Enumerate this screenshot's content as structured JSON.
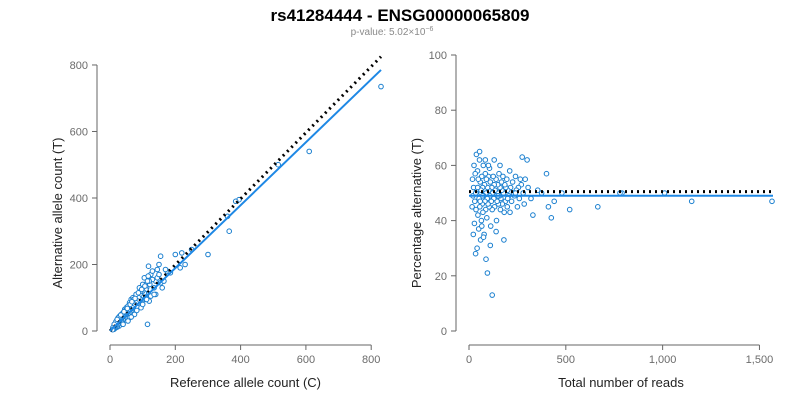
{
  "title": "rs41284444 - ENSG00000065809",
  "subtitle": {
    "label": "p-value: 5.02×10",
    "exponent": "−6"
  },
  "colors": {
    "points": "#1a7fcf",
    "fit_line": "#1e88e5",
    "reference_line": "#000000"
  },
  "chart_data": [
    {
      "type": "scatter",
      "xlabel": "Reference allele count (C)",
      "ylabel": "Alternative allele count (T)",
      "xlim": [
        0,
        830
      ],
      "ylim": [
        0,
        830
      ],
      "xticks": [
        0,
        200,
        400,
        600,
        800
      ],
      "xtick_labels": [
        "0",
        "200",
        "400",
        "600",
        "800"
      ],
      "yticks": [
        0,
        200,
        400,
        600,
        800
      ],
      "ytick_labels": [
        "0",
        "200",
        "400",
        "600",
        "800"
      ],
      "grid": false,
      "lines": [
        {
          "style": "dotted",
          "color": "#000000",
          "x": [
            0,
            830
          ],
          "y": [
            0,
            825
          ]
        },
        {
          "style": "solid",
          "color": "#1e88e5",
          "x": [
            0,
            830
          ],
          "y": [
            0,
            785
          ]
        }
      ],
      "points": [
        [
          830,
          735
        ],
        [
          610,
          540
        ],
        [
          515,
          500
        ],
        [
          395,
          395
        ],
        [
          385,
          390
        ],
        [
          365,
          300
        ],
        [
          360,
          345
        ],
        [
          300,
          230
        ],
        [
          250,
          245
        ],
        [
          230,
          200
        ],
        [
          220,
          235
        ],
        [
          215,
          190
        ],
        [
          200,
          230
        ],
        [
          175,
          180
        ],
        [
          160,
          130
        ],
        [
          155,
          225
        ],
        [
          150,
          200
        ],
        [
          145,
          185
        ],
        [
          140,
          150
        ],
        [
          135,
          130
        ],
        [
          130,
          155
        ],
        [
          125,
          170
        ],
        [
          122,
          140
        ],
        [
          120,
          150
        ],
        [
          118,
          195
        ],
        [
          115,
          110
        ],
        [
          112,
          130
        ],
        [
          110,
          125
        ],
        [
          108,
          140
        ],
        [
          105,
          115
        ],
        [
          102,
          100
        ],
        [
          100,
          120
        ],
        [
          98,
          90
        ],
        [
          96,
          105
        ],
        [
          95,
          85
        ],
        [
          93,
          95
        ],
        [
          92,
          110
        ],
        [
          90,
          80
        ],
        [
          88,
          100
        ],
        [
          86,
          75
        ],
        [
          85,
          90
        ],
        [
          83,
          70
        ],
        [
          80,
          85
        ],
        [
          78,
          60
        ],
        [
          76,
          80
        ],
        [
          75,
          65
        ],
        [
          73,
          75
        ],
        [
          70,
          55
        ],
        [
          68,
          70
        ],
        [
          66,
          60
        ],
        [
          65,
          50
        ],
        [
          63,
          65
        ],
        [
          60,
          55
        ],
        [
          58,
          45
        ],
        [
          57,
          60
        ],
        [
          55,
          50
        ],
        [
          53,
          40
        ],
        [
          52,
          55
        ],
        [
          50,
          45
        ],
        [
          48,
          35
        ],
        [
          47,
          50
        ],
        [
          45,
          40
        ],
        [
          43,
          30
        ],
        [
          42,
          45
        ],
        [
          40,
          35
        ],
        [
          38,
          25
        ],
        [
          37,
          40
        ],
        [
          35,
          30
        ],
        [
          33,
          20
        ],
        [
          32,
          35
        ],
        [
          30,
          25
        ],
        [
          28,
          15
        ],
        [
          27,
          30
        ],
        [
          25,
          20
        ],
        [
          23,
          25
        ],
        [
          22,
          12
        ],
        [
          20,
          18
        ],
        [
          18,
          10
        ],
        [
          17,
          22
        ],
        [
          15,
          8
        ],
        [
          14,
          15
        ],
        [
          12,
          5
        ],
        [
          11,
          12
        ],
        [
          10,
          6
        ],
        [
          9,
          10
        ],
        [
          8,
          4
        ],
        [
          20,
          30
        ],
        [
          25,
          40
        ],
        [
          30,
          45
        ],
        [
          35,
          50
        ],
        [
          40,
          55
        ],
        [
          45,
          65
        ],
        [
          50,
          70
        ],
        [
          55,
          75
        ],
        [
          60,
          85
        ],
        [
          65,
          95
        ],
        [
          70,
          100
        ],
        [
          85,
          70
        ],
        [
          95,
          120
        ],
        [
          105,
          160
        ],
        [
          110,
          95
        ],
        [
          115,
          150
        ],
        [
          125,
          105
        ],
        [
          130,
          180
        ],
        [
          140,
          110
        ],
        [
          145,
          160
        ],
        [
          150,
          170
        ],
        [
          170,
          185
        ],
        [
          185,
          175
        ],
        [
          90,
          130
        ],
        [
          100,
          140
        ],
        [
          80,
          110
        ],
        [
          72,
          95
        ],
        [
          62,
          80
        ],
        [
          48,
          62
        ],
        [
          38,
          52
        ],
        [
          28,
          42
        ],
        [
          18,
          28
        ],
        [
          13,
          20
        ],
        [
          22,
          35
        ],
        [
          33,
          48
        ],
        [
          43,
          58
        ],
        [
          53,
          68
        ],
        [
          67,
          88
        ],
        [
          77,
          98
        ],
        [
          87,
          115
        ],
        [
          97,
          125
        ],
        [
          107,
          135
        ],
        [
          117,
          165
        ],
        [
          40,
          20
        ],
        [
          60,
          40
        ],
        [
          75,
          50
        ],
        [
          95,
          70
        ],
        [
          120,
          90
        ],
        [
          135,
          110
        ],
        [
          155,
          145
        ],
        [
          165,
          150
        ],
        [
          115,
          20
        ],
        [
          55,
          30
        ],
        [
          65,
          42
        ],
        [
          82,
          62
        ],
        [
          100,
          80
        ],
        [
          112,
          95
        ]
      ]
    },
    {
      "type": "scatter",
      "xlabel": "Total number of reads",
      "ylabel": "Percentage alternative (T)",
      "xlim": [
        0,
        1570
      ],
      "ylim": [
        0,
        100
      ],
      "xticks": [
        0,
        500,
        1000,
        1500
      ],
      "xtick_labels": [
        "0",
        "500",
        "1,000",
        "1,500"
      ],
      "yticks": [
        0,
        20,
        40,
        60,
        80,
        100
      ],
      "ytick_labels": [
        "0",
        "20",
        "40",
        "60",
        "80",
        "100"
      ],
      "grid": false,
      "lines": [
        {
          "style": "dotted",
          "color": "#000000",
          "x": [
            0,
            1570
          ],
          "y": [
            50.5,
            50.5
          ]
        },
        {
          "style": "solid",
          "color": "#1e88e5",
          "x": [
            0,
            1570
          ],
          "y": [
            49,
            49
          ]
        }
      ],
      "points": [
        [
          1565,
          47
        ],
        [
          1150,
          47
        ],
        [
          1010,
          50
        ],
        [
          790,
          50
        ],
        [
          780,
          50
        ],
        [
          665,
          45
        ],
        [
          520,
          44
        ],
        [
          480,
          50
        ],
        [
          440,
          47
        ],
        [
          425,
          41
        ],
        [
          410,
          45
        ],
        [
          400,
          57
        ],
        [
          375,
          50
        ],
        [
          355,
          51
        ],
        [
          330,
          42
        ],
        [
          320,
          48
        ],
        [
          305,
          52
        ],
        [
          300,
          62
        ],
        [
          290,
          55
        ],
        [
          285,
          46
        ],
        [
          280,
          50
        ],
        [
          275,
          63
        ],
        [
          270,
          53
        ],
        [
          265,
          55
        ],
        [
          260,
          48
        ],
        [
          255,
          52
        ],
        [
          250,
          45
        ],
        [
          245,
          51
        ],
        [
          240,
          56
        ],
        [
          235,
          49
        ],
        [
          230,
          50
        ],
        [
          225,
          54
        ],
        [
          220,
          47
        ],
        [
          215,
          52
        ],
        [
          212,
          43
        ],
        [
          210,
          58
        ],
        [
          205,
          49
        ],
        [
          200,
          51
        ],
        [
          198,
          45
        ],
        [
          195,
          55
        ],
        [
          190,
          52
        ],
        [
          188,
          47
        ],
        [
          185,
          53
        ],
        [
          182,
          43
        ],
        [
          180,
          33
        ],
        [
          178,
          50
        ],
        [
          175,
          56
        ],
        [
          172,
          46
        ],
        [
          170,
          51
        ],
        [
          168,
          54
        ],
        [
          165,
          48
        ],
        [
          162,
          44
        ],
        [
          160,
          52
        ],
        [
          158,
          49
        ],
        [
          155,
          57
        ],
        [
          152,
          46
        ],
        [
          150,
          50
        ],
        [
          148,
          53
        ],
        [
          145,
          47
        ],
        [
          142,
          40
        ],
        [
          140,
          55
        ],
        [
          138,
          49
        ],
        [
          135,
          51
        ],
        [
          132,
          45
        ],
        [
          130,
          53
        ],
        [
          128,
          48
        ],
        [
          125,
          56
        ],
        [
          122,
          50
        ],
        [
          120,
          44
        ],
        [
          118,
          52
        ],
        [
          115,
          47
        ],
        [
          112,
          38
        ],
        [
          110,
          54
        ],
        [
          108,
          49
        ],
        [
          106,
          59
        ],
        [
          104,
          45
        ],
        [
          102,
          51
        ],
        [
          100,
          56
        ],
        [
          98,
          46
        ],
        [
          96,
          52
        ],
        [
          94,
          48
        ],
        [
          92,
          41
        ],
        [
          90,
          55
        ],
        [
          88,
          50
        ],
        [
          86,
          44
        ],
        [
          84,
          57
        ],
        [
          82,
          47
        ],
        [
          80,
          53
        ],
        [
          78,
          35
        ],
        [
          76,
          49
        ],
        [
          74,
          60
        ],
        [
          72,
          43
        ],
        [
          70,
          52
        ],
        [
          68,
          46
        ],
        [
          66,
          56
        ],
        [
          64,
          40
        ],
        [
          62,
          50
        ],
        [
          60,
          33
        ],
        [
          58,
          54
        ],
        [
          56,
          45
        ],
        [
          54,
          62
        ],
        [
          52,
          48
        ],
        [
          50,
          37
        ],
        [
          48,
          55
        ],
        [
          46,
          42
        ],
        [
          44,
          58
        ],
        [
          42,
          30
        ],
        [
          40,
          51
        ],
        [
          38,
          64
        ],
        [
          36,
          44
        ],
        [
          34,
          28
        ],
        [
          32,
          57
        ],
        [
          30,
          47
        ],
        [
          28,
          39
        ],
        [
          26,
          60
        ],
        [
          24,
          52
        ],
        [
          22,
          35
        ],
        [
          20,
          49
        ],
        [
          18,
          55
        ],
        [
          16,
          45
        ],
        [
          120,
          13
        ],
        [
          95,
          21
        ],
        [
          88,
          26
        ],
        [
          110,
          31
        ],
        [
          75,
          34
        ],
        [
          140,
          36
        ],
        [
          66,
          38
        ],
        [
          55,
          65
        ],
        [
          84,
          62
        ],
        [
          100,
          60
        ],
        [
          160,
          60
        ],
        [
          130,
          62
        ],
        [
          70,
          49
        ],
        [
          62,
          51
        ],
        [
          58,
          47
        ],
        [
          150,
          49
        ],
        [
          200,
          48
        ],
        [
          240,
          50
        ],
        [
          45,
          52
        ],
        [
          35,
          50
        ]
      ]
    }
  ]
}
